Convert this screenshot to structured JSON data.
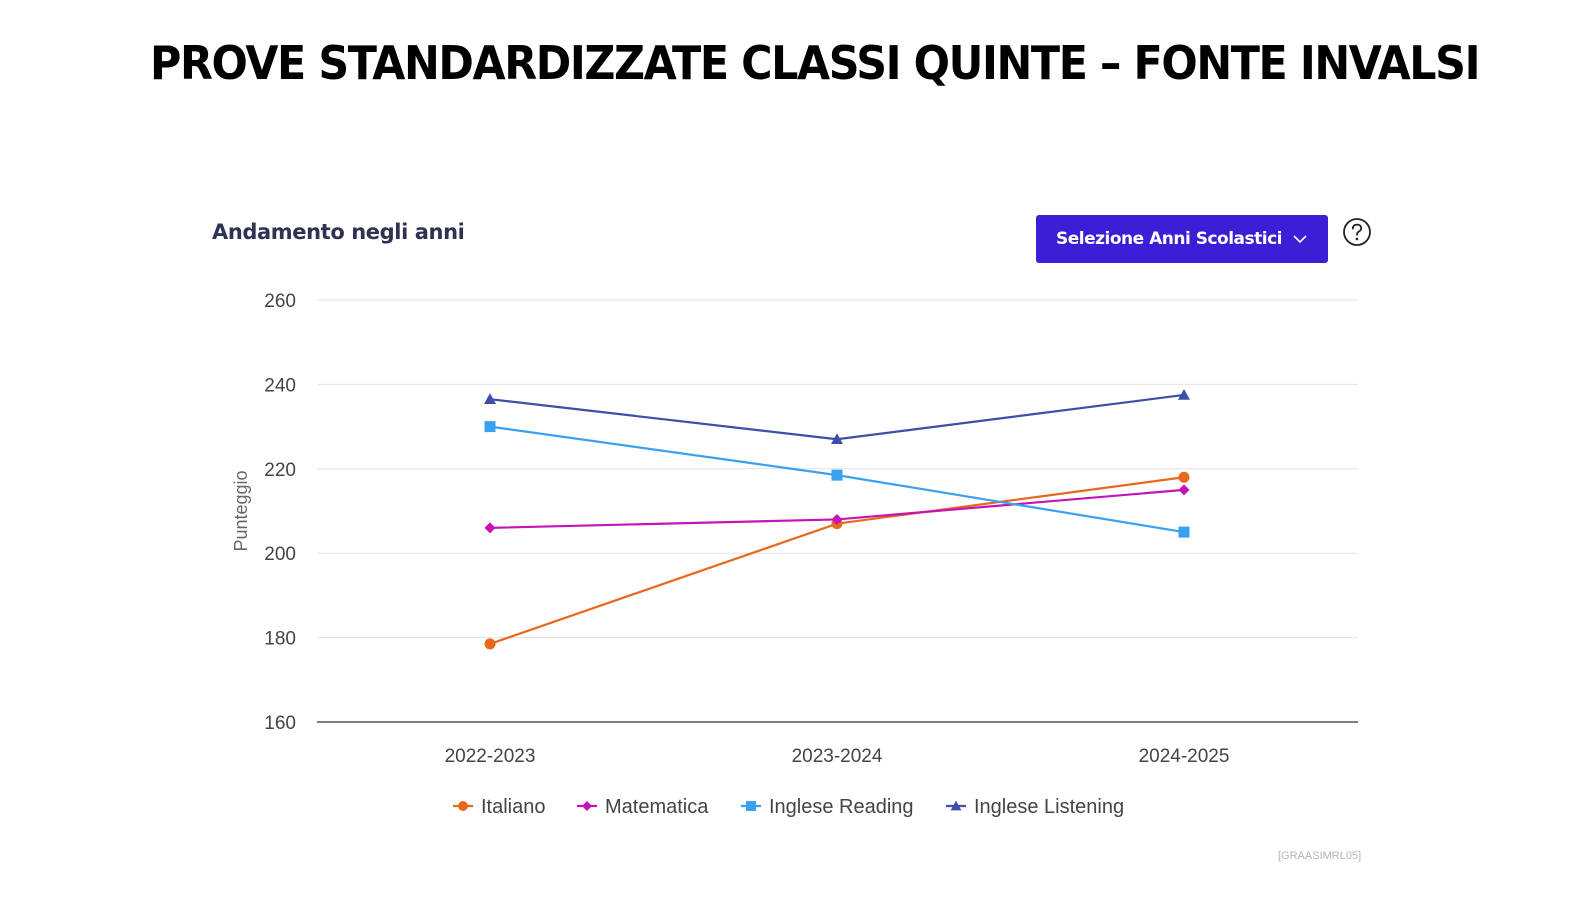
{
  "page": {
    "title": "PROVE STANDARDIZZATE CLASSI QUINTE – FONTE INVALSI",
    "panel_title": "Andamento negli anni",
    "years_button_label": "Selezione Anni Scolastici",
    "footer_code": "[GRAASIMRL05]",
    "icons": {
      "years_dropdown": "chevron-down-icon",
      "help": "question-circle-icon"
    }
  },
  "chart_data": {
    "type": "line",
    "ylabel": "Punteggio",
    "xlabel": "",
    "ylim": [
      160,
      260
    ],
    "yticks": [
      160,
      180,
      200,
      220,
      240,
      260
    ],
    "grid": true,
    "legend_position": "bottom",
    "categories": [
      "2022-2023",
      "2023-2024",
      "2024-2025"
    ],
    "series": [
      {
        "name": "Italiano",
        "color": "#e8691e",
        "marker": "circle",
        "values": [
          178.5,
          207,
          218
        ]
      },
      {
        "name": "Matematica",
        "color": "#c414b8",
        "marker": "diamond",
        "values": [
          206,
          208,
          215
        ]
      },
      {
        "name": "Inglese Reading",
        "color": "#3aa0f0",
        "marker": "square",
        "values": [
          230,
          218.5,
          205
        ]
      },
      {
        "name": "Inglese Listening",
        "color": "#3c4ea8",
        "marker": "triangle",
        "values": [
          236.5,
          227,
          237.5
        ]
      }
    ]
  }
}
